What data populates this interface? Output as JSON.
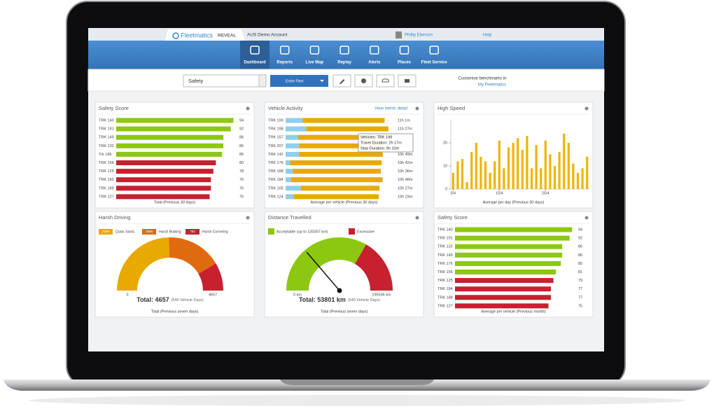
{
  "header": {
    "logo": "Fleetmatics",
    "product": "REVEAL",
    "account": "AUS Demo Account",
    "user": "Phillip Eberson",
    "help": "Help"
  },
  "nav": [
    "Dashboard",
    "Reports",
    "Live Map",
    "Replay",
    "Alerts",
    "Places",
    "Fleet Service"
  ],
  "toolbar": {
    "view": "Safety",
    "fleet": "Entire Fleet",
    "benchmark_text": "Customise benchmarks in",
    "benchmark_link": "My Fleetmatics"
  },
  "panels": [
    {
      "type": "hbar",
      "title": "Safety Score",
      "categories": [
        "TRK 140",
        "TRK 191",
        "TRK 149",
        "TRK 132",
        "Trk 186",
        "TRK 158",
        "TRK 125",
        "TRK 160",
        "TRK 189",
        "TRK 127"
      ],
      "values": [
        94,
        92,
        86,
        86,
        85,
        80,
        78,
        76,
        76,
        75
      ],
      "colors": [
        "#8cc811",
        "#8cc811",
        "#8cc811",
        "#8cc811",
        "#8cc811",
        "#c7202f",
        "#c7202f",
        "#c7202f",
        "#c7202f",
        "#c7202f"
      ],
      "xlim": [
        0,
        100
      ],
      "footer": "Total (Previous 30 days)"
    },
    {
      "type": "stacked_hbar",
      "title": "Vehicle Activity",
      "link": "View metric detail",
      "categories": [
        "TRK 100",
        "TRK 198",
        "TRK 157",
        "TRK 207",
        "TRK 142",
        "TRK 176",
        "TRK 188",
        "TRK 184",
        "TRK 105",
        "TRK 124"
      ],
      "series": [
        {
          "color": "#8ecfee",
          "values": [
            1.9,
            2.28,
            1.4,
            1.5,
            1.5,
            0.5,
            0.8,
            0.6,
            1.7,
            0.9
          ]
        },
        {
          "color": "#e8a900",
          "values": [
            9.12,
            9.17,
            9.63,
            9.35,
            9.32,
            10.2,
            9.8,
            10.2,
            8.75,
            9.48
          ]
        }
      ],
      "totals": [
        "11h 1m",
        "11h 27m",
        "11h 2m",
        "10h 51m",
        "10h 49m",
        "10h 42m",
        "10h 36m",
        "10h 48m",
        "10h 27m",
        "10h 23m"
      ],
      "tooltip": [
        "Vehicles: TRK 198",
        "Travel Duration: 2h 17m",
        "Stop Duration: 9h 10m"
      ],
      "xlim": [
        0,
        12
      ],
      "footer": "Average per vehicle (Previous 30 days)"
    },
    {
      "type": "column",
      "title": "High Speed",
      "categories": [
        "5/4",
        null,
        null,
        null,
        null,
        null,
        null,
        null,
        null,
        null,
        "15/4",
        null,
        null,
        null,
        null,
        null,
        null,
        null,
        null,
        null,
        "25/4",
        null,
        null,
        null,
        null,
        null,
        null,
        null,
        null,
        null
      ],
      "values": [
        7,
        12,
        13,
        3,
        16,
        20,
        14,
        12,
        7,
        12,
        21,
        9,
        18,
        20,
        22,
        17,
        23,
        9,
        19,
        9,
        21,
        15,
        10,
        16,
        24,
        20,
        11,
        7,
        9,
        14
      ],
      "color": "#f0b400",
      "ylim": [
        0,
        30
      ],
      "yticks": [
        0,
        10,
        20
      ],
      "footer": "Average per day (Previous 30 days)"
    },
    {
      "type": "gauge",
      "title": "Harsh Driving",
      "series": [
        {
          "name": "Quick Starts",
          "value": 2296,
          "color": "#e8a900"
        },
        {
          "name": "Harsh Braking",
          "value": 1568,
          "color": "#e06a10"
        },
        {
          "name": "Harsh Cornering",
          "value": 793,
          "color": "#c7202f"
        }
      ],
      "range": [
        0,
        4657
      ],
      "total": {
        "value": 4657,
        "label": "Total: 4657"
      },
      "note": "(540 Vehicle Days)",
      "footer": "Total (Previous seven days)"
    },
    {
      "type": "meter",
      "title": "Distance Travelled",
      "series": [
        {
          "name": "Acceptable (up to 130357 km)",
          "value": 130357,
          "color": "#8cc811"
        },
        {
          "name": "Excessive",
          "color": "#c7202f"
        }
      ],
      "range": [
        {
          "value": 0,
          "label": "0 km"
        },
        {
          "value": 195536,
          "label": "195536 km"
        }
      ],
      "total": {
        "value": 53801,
        "label": "Total: 53801 km"
      },
      "note": "(540 Vehicle Days)",
      "footer": "Total (Previous seven days)"
    },
    {
      "type": "hbar",
      "title": "Safety Score",
      "categories": [
        "TRK 140",
        "TRK 191",
        "TRK 132",
        "TRK 149",
        "TRK 176",
        "TRK 156",
        "TRK 125",
        "TRK 184",
        "TRK 188",
        "TRK 127"
      ],
      "values": [
        94,
        92,
        86,
        86,
        85,
        81,
        79,
        77,
        77,
        75
      ],
      "colors": [
        "#8cc811",
        "#8cc811",
        "#8cc811",
        "#8cc811",
        "#8cc811",
        "#8cc811",
        "#c7202f",
        "#c7202f",
        "#c7202f",
        "#c7202f"
      ],
      "xlim": [
        0,
        100
      ],
      "footer": "Average per vehicle (Previous month)"
    }
  ]
}
